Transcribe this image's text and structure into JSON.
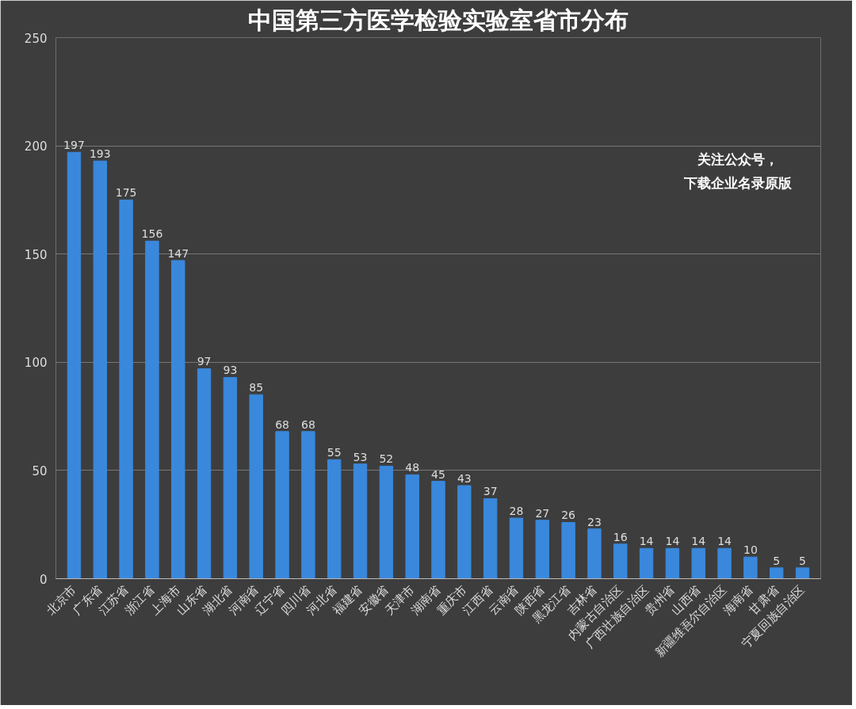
{
  "chart_data": {
    "type": "bar",
    "title": "中国第三方医学检验实验室省市分布",
    "categories": [
      "北京市",
      "广东省",
      "江苏省",
      "浙江省",
      "上海市",
      "山东省",
      "湖北省",
      "河南省",
      "辽宁省",
      "四川省",
      "河北省",
      "福建省",
      "安徽省",
      "天津市",
      "湖南省",
      "重庆市",
      "江西省",
      "云南省",
      "陕西省",
      "黑龙江省",
      "吉林省",
      "内蒙古自治区",
      "广西壮族自治区",
      "贵州省",
      "山西省",
      "新疆维吾尔自治区",
      "海南省",
      "甘肃省",
      "宁夏回族自治区"
    ],
    "values": [
      197,
      193,
      175,
      156,
      147,
      97,
      93,
      85,
      68,
      68,
      55,
      53,
      52,
      48,
      45,
      43,
      37,
      28,
      27,
      26,
      23,
      16,
      14,
      14,
      14,
      14,
      10,
      5,
      5
    ],
    "color": "#3a88dc",
    "ylim": [
      0,
      250
    ],
    "yticks": [
      0,
      50,
      100,
      150,
      200,
      250
    ],
    "grid": "y",
    "data_labels": true,
    "annotations": [
      "关注公众号，",
      "下载企业名录原版"
    ]
  }
}
